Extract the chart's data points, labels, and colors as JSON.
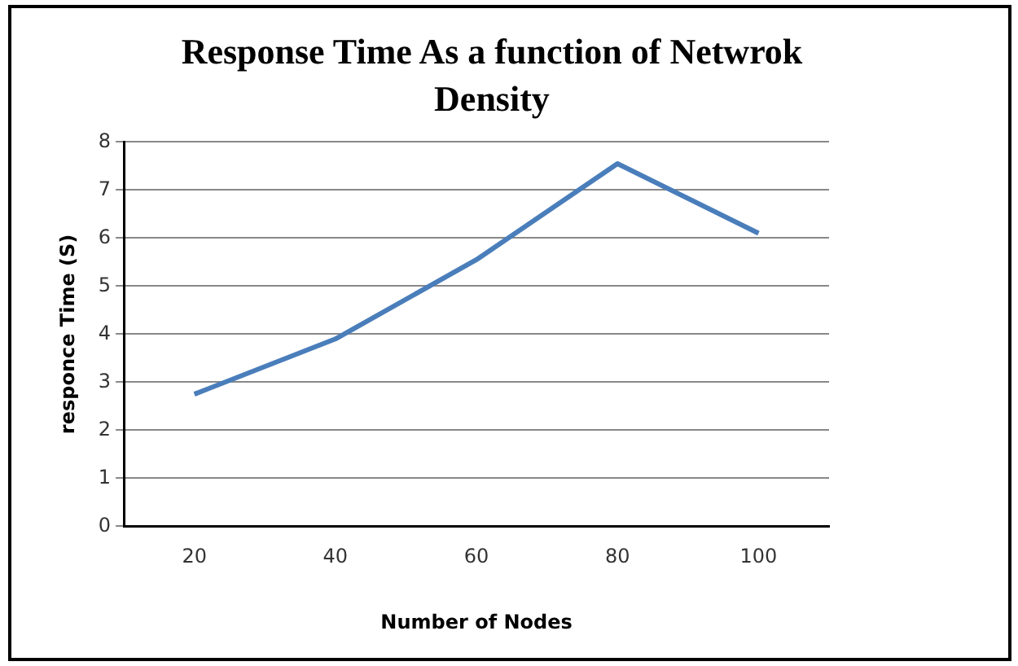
{
  "chart_data": {
    "type": "line",
    "title": "Response Time As a function of Netwrok Density",
    "xlabel": "Number of Nodes",
    "ylabel": "responce Time (S)",
    "categories": [
      "20",
      "40",
      "60",
      "80",
      "100"
    ],
    "series": [
      {
        "color": "#4a7ebb",
        "values": [
          2.75,
          3.9,
          5.55,
          7.55,
          6.1
        ]
      }
    ],
    "ylim": [
      0,
      8
    ],
    "yticks": [
      0,
      1,
      2,
      3,
      4,
      5,
      6,
      7,
      8
    ],
    "grid": "y",
    "legend": false,
    "marker": "none",
    "line_style": "solid"
  }
}
